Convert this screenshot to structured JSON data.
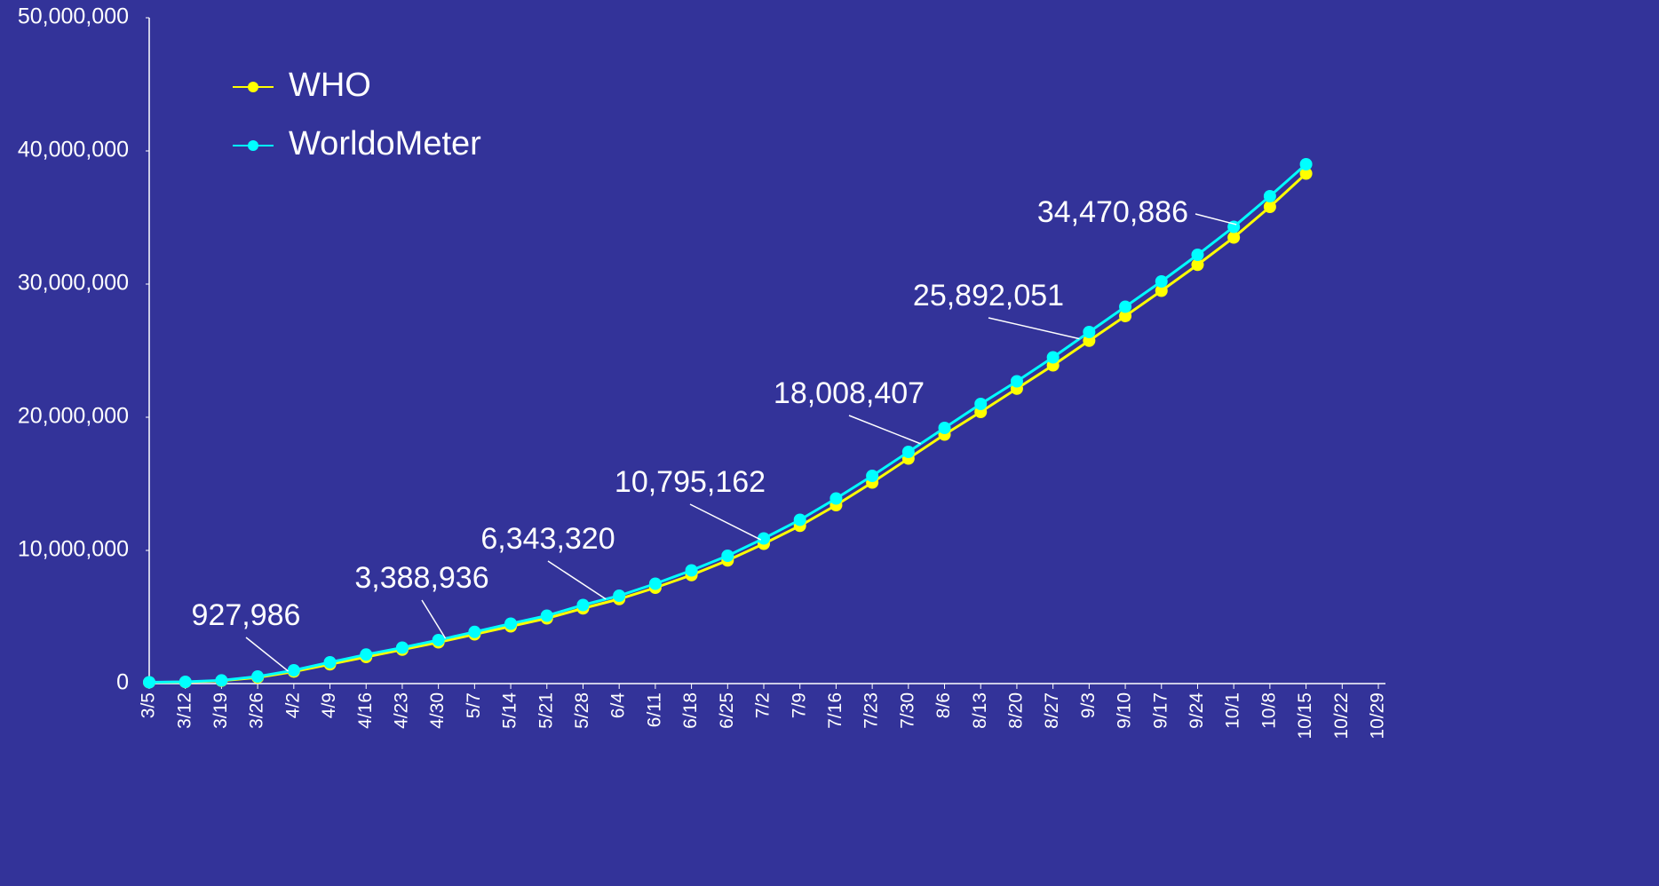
{
  "chart_data": {
    "type": "line",
    "categories": [
      "3/5",
      "3/12",
      "3/19",
      "3/26",
      "4/2",
      "4/9",
      "4/16",
      "4/23",
      "4/30",
      "5/7",
      "5/14",
      "5/21",
      "5/28",
      "6/4",
      "6/11",
      "6/18",
      "6/25",
      "7/2",
      "7/9",
      "7/16",
      "7/23",
      "7/30",
      "8/6",
      "8/13",
      "8/20",
      "8/27",
      "9/3",
      "9/10",
      "9/17",
      "9/24",
      "10/1",
      "10/8",
      "10/15",
      "10/22",
      "10/29"
    ],
    "series": [
      {
        "name": "WHO",
        "color": "#ffff00",
        "values": [
          95000,
          120000,
          210000,
          460000,
          900000,
          1450000,
          2000000,
          2550000,
          3100000,
          3700000,
          4300000,
          4900000,
          5650000,
          6350000,
          7200000,
          8150000,
          9250000,
          10500000,
          11850000,
          13400000,
          15100000,
          16900000,
          18700000,
          20400000,
          22150000,
          23900000,
          25750000,
          27600000,
          29500000,
          31450000,
          33500000,
          35800000,
          38300000,
          null,
          null
        ]
      },
      {
        "name": "WorldoMeter",
        "color": "#00ffff",
        "values": [
          100000,
          130000,
          240000,
          530000,
          1000000,
          1600000,
          2180000,
          2700000,
          3270000,
          3880000,
          4500000,
          5100000,
          5900000,
          6600000,
          7500000,
          8500000,
          9600000,
          10900000,
          12300000,
          13900000,
          15600000,
          17400000,
          19200000,
          21000000,
          22700000,
          24500000,
          26400000,
          28300000,
          30200000,
          32200000,
          34300000,
          36600000,
          39000000,
          null,
          null
        ]
      }
    ],
    "annotations": [
      {
        "value": 927986,
        "label": "927,986"
      },
      {
        "value": 3388936,
        "label": "3,388,936"
      },
      {
        "value": 6343320,
        "label": "6,343,320"
      },
      {
        "value": 10795162,
        "label": "10,795,162"
      },
      {
        "value": 18008407,
        "label": "18,008,407"
      },
      {
        "value": 25892051,
        "label": "25,892,051"
      },
      {
        "value": 34470886,
        "label": "34,470,886"
      }
    ],
    "ylim": [
      0,
      50000000
    ],
    "yticks": [
      0,
      {
        "value": 10000000,
        "label": "10,000,000"
      },
      {
        "value": 20000000,
        "label": "20,000,000"
      },
      {
        "value": 30000000,
        "label": "30,000,000"
      },
      {
        "value": 40000000,
        "label": "40,000,000"
      },
      {
        "value": 50000000,
        "label": "50,000,000"
      }
    ],
    "legend": "top-left"
  }
}
